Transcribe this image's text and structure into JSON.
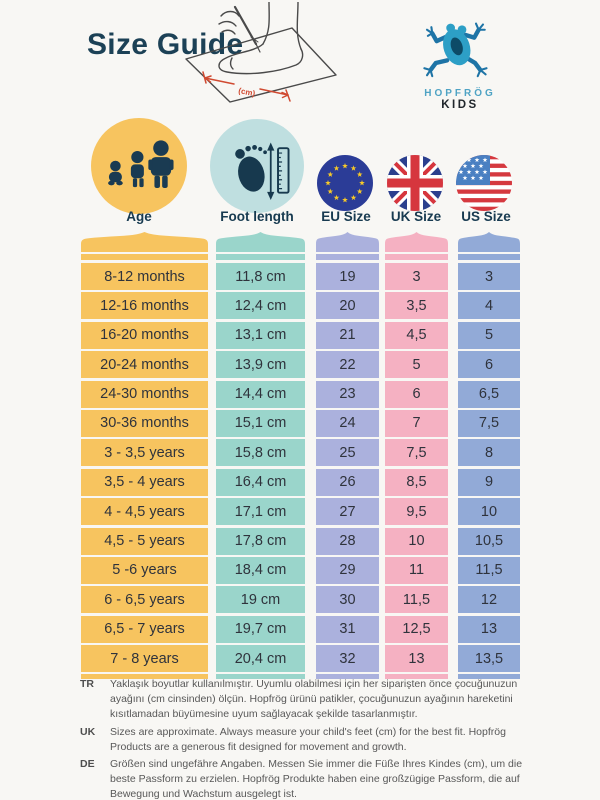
{
  "page_title": "Size Guide",
  "brand": {
    "logo_icon": "frog-icon",
    "name_line1": "HOPFRÖG",
    "name_line2": "KIDS"
  },
  "illustration": {
    "icon": "foot-measuring-illustration",
    "cm_label": "(cm)"
  },
  "colors": {
    "background": "#F8F7F4",
    "title_navy": "#1C4156",
    "label_navy": "#173A50",
    "cell_text": "#2F333C",
    "footer_gray": "#585858",
    "accent_red": "#D04A31",
    "frog_blue": "#2D9FC6",
    "frog_dark_blue": "#1E74A6",
    "frog_oval": "#0D4B67",
    "logo_teal": "#4FA3C4"
  },
  "chart_data": {
    "type": "table",
    "title": "Size Guide",
    "columns": [
      {
        "label": "Age",
        "icon": "age-people-icon",
        "color": "#F7C45F",
        "circle_color": "#F7C45F"
      },
      {
        "label": "Foot length",
        "icon": "foot-ruler-icon",
        "color": "#9AD5CB",
        "circle_color": "#BFDFE0"
      },
      {
        "label": "EU Size",
        "icon": "eu-flag-icon",
        "color": "#ABB1DD",
        "circle_color": ""
      },
      {
        "label": "UK Size",
        "icon": "uk-flag-icon",
        "color": "#F5B1C2",
        "circle_color": ""
      },
      {
        "label": "US Size",
        "icon": "us-flag-icon",
        "color": "#92AAD7",
        "circle_color": ""
      }
    ],
    "rows": [
      [
        "8-12 months",
        "11,8 cm",
        "19",
        "3",
        "3"
      ],
      [
        "12-16 months",
        "12,4 cm",
        "20",
        "3,5",
        "4"
      ],
      [
        "16-20 months",
        "13,1 cm",
        "21",
        "4,5",
        "5"
      ],
      [
        "20-24 months",
        "13,9 cm",
        "22",
        "5",
        "6"
      ],
      [
        "24-30 months",
        "14,4 cm",
        "23",
        "6",
        "6,5"
      ],
      [
        "30-36 months",
        "15,1 cm",
        "24",
        "7",
        "7,5"
      ],
      [
        "3 - 3,5 years",
        "15,8 cm",
        "25",
        "7,5",
        "8"
      ],
      [
        "3,5 - 4 years",
        "16,4 cm",
        "26",
        "8,5",
        "9"
      ],
      [
        "4 - 4,5 years",
        "17,1 cm",
        "27",
        "9,5",
        "10"
      ],
      [
        "4,5 - 5 years",
        "17,8 cm",
        "28",
        "10",
        "10,5"
      ],
      [
        "5 -6 years",
        "18,4 cm",
        "29",
        "11",
        "11,5"
      ],
      [
        "6 - 6,5 years",
        "19 cm",
        "30",
        "11,5",
        "12"
      ],
      [
        "6,5 - 7 years",
        "19,7 cm",
        "31",
        "12,5",
        "13"
      ],
      [
        "7 - 8 years",
        "20,4 cm",
        "32",
        "13",
        "13,5"
      ]
    ]
  },
  "footer": {
    "notes": [
      {
        "lang": "TR",
        "text": "Yaklaşık boyutlar kullanılmıştır. Uyumlu olabilmesi için her siparişten önce çocuğunuzun ayağını (cm cinsinden) ölçün. Hopfrög ürünü patikler, çocuğunuzun ayağının hareketini kısıtlamadan büyümesine uyum sağlayacak şekilde tasarlanmıştır."
      },
      {
        "lang": "UK",
        "text": "Sizes are approximate. Always measure your child's feet (cm) for the best fit. Hopfrög Products are a generous fit designed for movement and growth."
      },
      {
        "lang": "DE",
        "text": "Größen sind ungefähre Angaben. Messen Sie immer die Füße Ihres Kindes (cm), um die beste Passform zu erzielen. Hopfrög Produkte haben eine großzügige Passform, die auf Bewegung und Wachstum ausgelegt ist."
      }
    ]
  }
}
